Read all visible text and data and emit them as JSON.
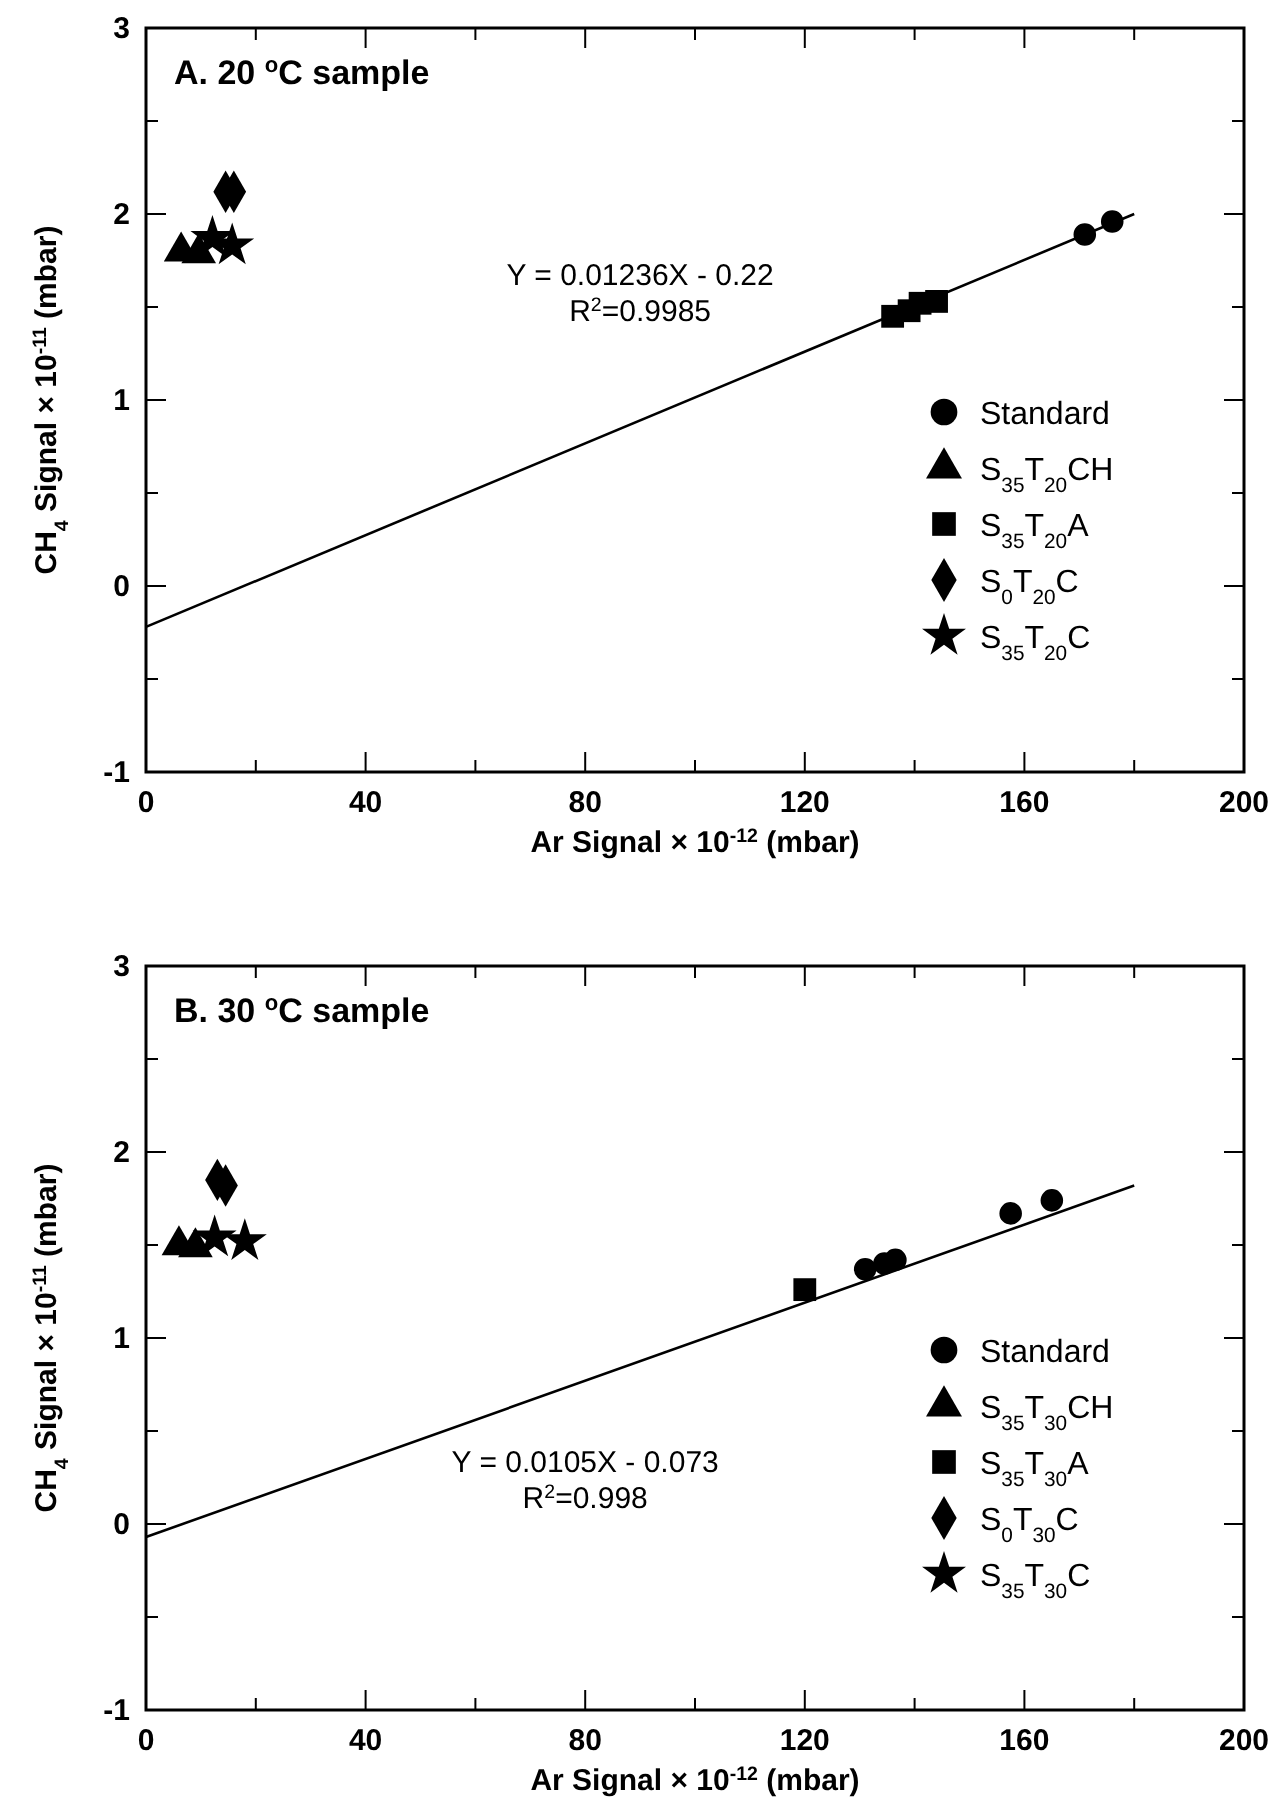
{
  "chart_data": [
    {
      "type": "scatter",
      "title": "A. 20 $^{o}$C sample",
      "xlabel": "Ar Signal × 10$^{-12}$ (mbar)",
      "ylabel": "CH$_{4}$ Signal × 10$^{-11}$ (mbar)",
      "annotations": [
        "Y = 0.01236X - 0.22",
        "R$^{2}$=0.9985"
      ],
      "xlim": [
        0,
        200
      ],
      "ylim": [
        -1,
        3
      ],
      "xticks": [
        0,
        {
          "value": 20,
          "label": null
        },
        40,
        {
          "value": 60,
          "label": null
        },
        80,
        {
          "value": 100,
          "label": null
        },
        120,
        {
          "value": 140,
          "label": null
        },
        160,
        {
          "value": 180,
          "label": null
        },
        200
      ],
      "yticks": [
        -1,
        {
          "value": -0.5,
          "label": null
        },
        0,
        {
          "value": 0.5,
          "label": null
        },
        1,
        {
          "value": 1.5,
          "label": null
        },
        2,
        {
          "value": 2.5,
          "label": null
        },
        3
      ],
      "grid": false,
      "legend": "bottom right",
      "series": [
        {
          "name": "Standard",
          "color": "#000000",
          "marker": "circle",
          "x": [
            171,
            176
          ],
          "values": [
            1.89,
            1.96
          ]
        },
        {
          "name": "S$_{35}$T$_{20}$CH",
          "color": "#000000",
          "marker": "triangle",
          "x": [
            6.4,
            9.6
          ],
          "values": [
            1.82,
            1.81
          ]
        },
        {
          "name": "S$_{35}$T$_{20}$A",
          "color": "#000000",
          "marker": "square",
          "x": [
            136,
            139,
            141,
            144
          ],
          "values": [
            1.45,
            1.48,
            1.52,
            1.53
          ]
        },
        {
          "name": "S$_{0}$T$_{20}$C",
          "color": "#000000",
          "marker": "diamond",
          "x": [
            14.5,
            16
          ],
          "values": [
            2.12,
            2.12
          ]
        },
        {
          "name": "S$_{35}$T$_{20}$C",
          "color": "#000000",
          "marker": "star",
          "x": [
            12.1,
            15.7
          ],
          "values": [
            1.87,
            1.83
          ]
        },
        {
          "type": "line",
          "color": "#000000",
          "line_style": "solid",
          "x": [
            0,
            180
          ],
          "values": [
            -0.22,
            2.0
          ]
        }
      ]
    },
    {
      "type": "scatter",
      "title": "B. 30 $^{o}$C sample",
      "xlabel": "Ar Signal × 10$^{-12}$ (mbar)",
      "ylabel": "CH$_{4}$ Signal × 10$^{-11}$ (mbar)",
      "annotations": [
        "Y = 0.0105X - 0.073",
        "R$^{2}$=0.998"
      ],
      "xlim": [
        0,
        200
      ],
      "ylim": [
        -1,
        3
      ],
      "xticks": [
        0,
        {
          "value": 20,
          "label": null
        },
        40,
        {
          "value": 60,
          "label": null
        },
        80,
        {
          "value": 100,
          "label": null
        },
        120,
        {
          "value": 140,
          "label": null
        },
        160,
        {
          "value": 180,
          "label": null
        },
        200
      ],
      "yticks": [
        -1,
        {
          "value": -0.5,
          "label": null
        },
        0,
        {
          "value": 0.5,
          "label": null
        },
        1,
        {
          "value": 1.5,
          "label": null
        },
        2,
        {
          "value": 2.5,
          "label": null
        },
        3
      ],
      "grid": false,
      "legend": "bottom right",
      "series": [
        {
          "name": "Standard",
          "color": "#000000",
          "marker": "circle",
          "x": [
            131,
            134.5,
            136.5,
            157.5,
            165
          ],
          "values": [
            1.37,
            1.4,
            1.42,
            1.67,
            1.74
          ]
        },
        {
          "name": "S$_{35}$T$_{30}$CH",
          "color": "#000000",
          "marker": "triangle",
          "x": [
            6,
            9
          ],
          "values": [
            1.52,
            1.51
          ]
        },
        {
          "name": "S$_{35}$T$_{30}$A",
          "color": "#000000",
          "marker": "square",
          "x": [
            120
          ],
          "values": [
            1.26
          ]
        },
        {
          "name": "S$_{0}$T$_{30}$C",
          "color": "#000000",
          "marker": "diamond",
          "x": [
            13,
            14.5
          ],
          "values": [
            1.85,
            1.82
          ]
        },
        {
          "name": "S$_{35}$T$_{30}$C",
          "color": "#000000",
          "marker": "star",
          "x": [
            12.5,
            18
          ],
          "values": [
            1.54,
            1.52
          ]
        },
        {
          "type": "line",
          "color": "#000000",
          "line_style": "solid",
          "x": [
            0,
            180
          ],
          "values": [
            -0.07,
            1.82
          ]
        }
      ]
    }
  ]
}
